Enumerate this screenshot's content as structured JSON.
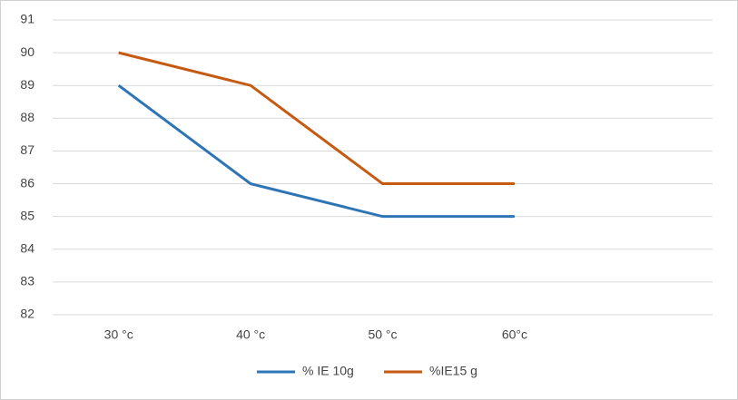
{
  "chart_data": {
    "type": "line",
    "categories": [
      "30 °c",
      "40 °c",
      "50 °c",
      "60°c"
    ],
    "series": [
      {
        "name": "% IE 10g",
        "color": "#2e75b6",
        "values": [
          89,
          86,
          85,
          85
        ]
      },
      {
        "name": "%IE15 g",
        "color": "#c55a11",
        "values": [
          90,
          89,
          86,
          86
        ]
      }
    ],
    "ylim": [
      82,
      91
    ],
    "yticks": [
      82,
      83,
      84,
      85,
      86,
      87,
      88,
      89,
      90,
      91
    ],
    "grid": true,
    "legend": "bottom"
  }
}
